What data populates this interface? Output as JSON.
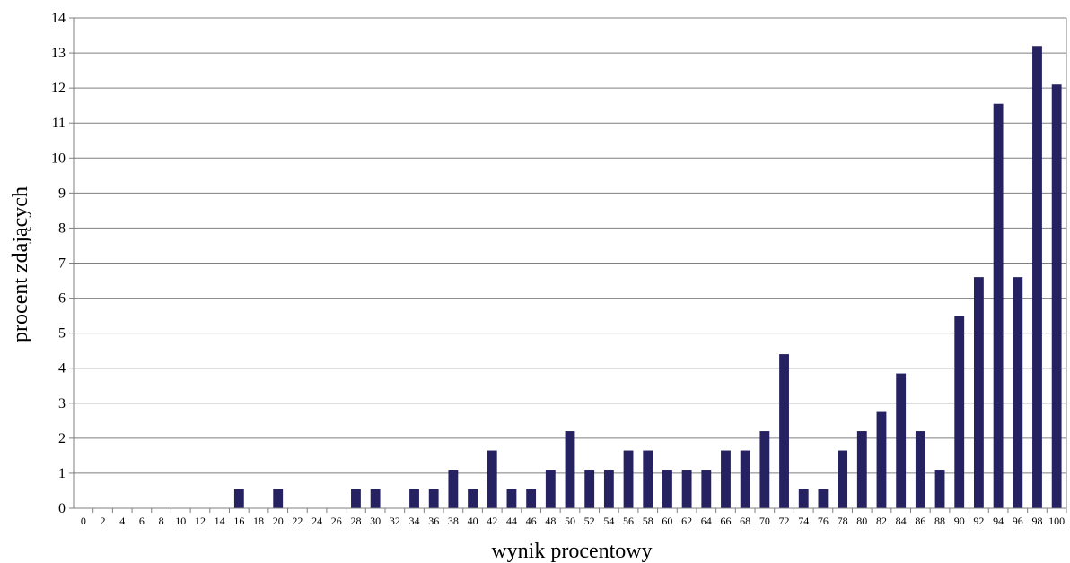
{
  "chart_data": {
    "type": "bar",
    "title": "",
    "xlabel": "wynik procentowy",
    "ylabel": "procent zdających",
    "ylim": [
      0,
      14
    ],
    "y_ticks": [
      0,
      1,
      2,
      3,
      4,
      5,
      6,
      7,
      8,
      9,
      10,
      11,
      12,
      13,
      14
    ],
    "grid": true,
    "legend": "none",
    "bar_color": "#262262",
    "categories": [
      "0",
      "2",
      "4",
      "6",
      "8",
      "10",
      "12",
      "14",
      "16",
      "18",
      "20",
      "22",
      "24",
      "26",
      "28",
      "30",
      "32",
      "34",
      "36",
      "38",
      "40",
      "42",
      "44",
      "46",
      "48",
      "50",
      "52",
      "54",
      "56",
      "58",
      "60",
      "62",
      "64",
      "66",
      "68",
      "70",
      "72",
      "74",
      "76",
      "78",
      "80",
      "82",
      "84",
      "86",
      "88",
      "90",
      "92",
      "94",
      "96",
      "98",
      "100"
    ],
    "values": [
      0,
      0,
      0,
      0,
      0,
      0,
      0,
      0,
      0.55,
      0,
      0.55,
      0,
      0,
      0,
      0.55,
      0.55,
      0,
      0.55,
      0.55,
      1.1,
      0.55,
      1.65,
      0.55,
      0.55,
      1.1,
      2.2,
      1.1,
      1.1,
      1.65,
      1.65,
      1.1,
      1.1,
      1.1,
      1.65,
      1.65,
      2.2,
      4.4,
      0.55,
      0.55,
      1.65,
      2.2,
      2.75,
      3.85,
      2.2,
      1.1,
      5.5,
      6.6,
      11.55,
      6.6,
      13.2,
      12.1
    ]
  }
}
